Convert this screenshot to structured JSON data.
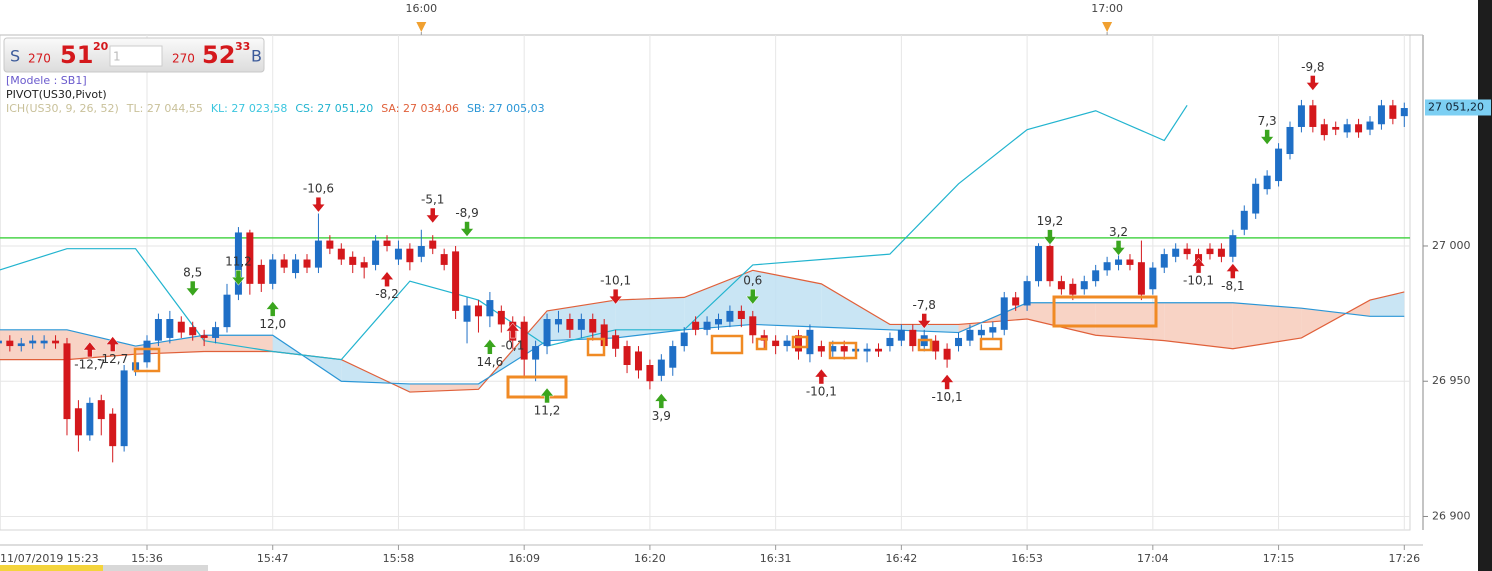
{
  "header": {
    "quote": {
      "sell_side": "S",
      "sell_prefix": "270",
      "sell_figure": "51",
      "sell_pips": "20",
      "input": "1",
      "buy_prefix": "270",
      "buy_figure": "52",
      "buy_pips": "33",
      "buy_side": "B"
    },
    "model": "[Modele : SB1]",
    "pivot_label": "PIVOT(US30,Pivot)",
    "legend": [
      {
        "text": "ICH(US30, 9, 26, 52)",
        "color": "#c9c19a"
      },
      {
        "text": "TL: 27 044,55",
        "color": "#c9c19a"
      },
      {
        "text": "KL: 27 023,58",
        "color": "#3cc6df"
      },
      {
        "text": "CS: 27 051,20",
        "color": "#22b4cf"
      },
      {
        "text": "SA: 27 034,06",
        "color": "#e0603a"
      },
      {
        "text": "SB: 27 005,03",
        "color": "#2a96d6"
      }
    ]
  },
  "chart_data": {
    "type": "candlestick",
    "x": [
      "15:23",
      "15:24",
      "15:25",
      "15:26",
      "15:27",
      "15:28",
      "15:29",
      "15:30",
      "15:31",
      "15:32",
      "15:33",
      "15:34",
      "15:35",
      "15:36",
      "15:37",
      "15:38",
      "15:39",
      "15:40",
      "15:41",
      "15:42",
      "15:43",
      "15:44",
      "15:45",
      "15:46",
      "15:47",
      "15:48",
      "15:49",
      "15:50",
      "15:51",
      "15:52",
      "15:53",
      "15:54",
      "15:55",
      "15:56",
      "15:57",
      "15:58",
      "15:59",
      "16:00",
      "16:01",
      "16:02",
      "16:03",
      "16:04",
      "16:05",
      "16:06",
      "16:07",
      "16:08",
      "16:09",
      "16:10",
      "16:11",
      "16:12",
      "16:13",
      "16:14",
      "16:15",
      "16:16",
      "16:17",
      "16:18",
      "16:19",
      "16:20",
      "16:21",
      "16:22",
      "16:23",
      "16:24",
      "16:25",
      "16:26",
      "16:27",
      "16:28",
      "16:29",
      "16:30",
      "16:31",
      "16:32",
      "16:33",
      "16:34",
      "16:35",
      "16:36",
      "16:37",
      "16:38",
      "16:39",
      "16:40",
      "16:41",
      "16:42",
      "16:43",
      "16:44",
      "16:45",
      "16:46",
      "16:47",
      "16:48",
      "16:49",
      "16:50",
      "16:51",
      "16:52",
      "16:53",
      "16:54",
      "16:55",
      "16:56",
      "16:57",
      "16:58",
      "16:59",
      "17:00",
      "17:01",
      "17:02",
      "17:03",
      "17:04",
      "17:05",
      "17:06",
      "17:07",
      "17:08",
      "17:09",
      "17:10",
      "17:11",
      "17:12",
      "17:13",
      "17:14",
      "17:15",
      "17:16",
      "17:17",
      "17:18",
      "17:19",
      "17:20",
      "17:21",
      "17:22",
      "17:23",
      "17:24",
      "17:25",
      "17:26"
    ],
    "open": [
      26964,
      26965,
      26963,
      26964,
      26964,
      26965,
      26964,
      26940,
      26930,
      26943,
      26938,
      26926,
      26954,
      26957,
      26965,
      26966,
      26972,
      26970,
      26967,
      26966,
      26970,
      26982,
      27005,
      26993,
      26986,
      26995,
      26990,
      26995,
      26992,
      27002,
      26999,
      26996,
      26994,
      26993,
      27002,
      26995,
      26999,
      26996,
      27002,
      26997,
      26998,
      26972,
      26978,
      26974,
      26976,
      26972,
      26972,
      26958,
      26963,
      26971,
      26973,
      26969,
      26973,
      26971,
      26967,
      26963,
      26961,
      26956,
      26952,
      26955,
      26963,
      26972,
      26969,
      26971,
      26972,
      26976,
      26974,
      26967,
      26965,
      26963,
      26967,
      26960,
      26963,
      26961,
      26963,
      26961,
      26961,
      26962,
      26963,
      26965,
      26969,
      26963,
      26965,
      26962,
      26963,
      26965,
      26967,
      26968,
      26969,
      26981,
      26978,
      26987,
      27000,
      26987,
      26986,
      26984,
      26987,
      26991,
      26993,
      26995,
      26994,
      26984,
      26992,
      26996,
      26999,
      26997,
      26999,
      26999,
      26996,
      27006,
      27012,
      27021,
      27024,
      27034,
      27044,
      27052,
      27045,
      27044,
      27042,
      27045,
      27043,
      27045,
      27052,
      27048
    ],
    "high": [
      26967,
      26967,
      26966,
      26967,
      26967,
      26967,
      26966,
      26943,
      26944,
      26945,
      26940,
      26956,
      26960,
      26967,
      26975,
      26976,
      26974,
      26972,
      26969,
      26972,
      26986,
      27007,
      27006,
      26995,
      26997,
      26997,
      26997,
      26997,
      27012,
      27004,
      27001,
      26998,
      26996,
      27004,
      27004,
      27002,
      27001,
      27006,
      27004,
      26999,
      27000,
      26981,
      26980,
      26983,
      26978,
      26974,
      26974,
      26965,
      26975,
      26976,
      26975,
      26975,
      26975,
      26973,
      26969,
      26965,
      26963,
      26958,
      26960,
      26965,
      26970,
      26974,
      26974,
      26975,
      26978,
      26978,
      26976,
      26969,
      26967,
      26967,
      26969,
      26971,
      26965,
      26965,
      26965,
      26964,
      26964,
      26964,
      26968,
      26971,
      26971,
      26969,
      26967,
      26964,
      26968,
      26971,
      26971,
      26972,
      26983,
      26983,
      26989,
      27001,
      27001,
      26989,
      26988,
      26989,
      26993,
      26996,
      26997,
      26997,
      27002,
      26994,
      26999,
      27001,
      27001,
      26999,
      27001,
      27001,
      27006,
      27015,
      27025,
      27028,
      27038,
      27046,
      27054,
      27054,
      27047,
      27046,
      27047,
      27047,
      27048,
      27054,
      27054,
      27053
    ],
    "low": [
      26962,
      26961,
      26961,
      26962,
      26962,
      26962,
      26930,
      26924,
      26928,
      26930,
      26920,
      26924,
      26952,
      26955,
      26963,
      26964,
      26966,
      26965,
      26963,
      26964,
      26968,
      26980,
      26982,
      26983,
      26984,
      26990,
      26988,
      26990,
      26990,
      26997,
      26993,
      26990,
      26988,
      26991,
      26998,
      26993,
      26991,
      26994,
      26997,
      26991,
      26973,
      26964,
      26968,
      26970,
      26968,
      26962,
      26952,
      26950,
      26960,
      26968,
      26966,
      26966,
      26965,
      26960,
      26959,
      26953,
      26951,
      26947,
      26950,
      26952,
      26961,
      26967,
      26967,
      26969,
      26970,
      26970,
      26964,
      26962,
      26960,
      26961,
      26958,
      26957,
      26959,
      26959,
      26958,
      26959,
      26957,
      26959,
      26961,
      26963,
      26961,
      26961,
      26958,
      26955,
      26961,
      26963,
      26965,
      26966,
      26967,
      26976,
      26976,
      26985,
      26985,
      26982,
      26980,
      26982,
      26985,
      26989,
      26991,
      26991,
      26980,
      26982,
      26990,
      26994,
      26995,
      26992,
      26995,
      26994,
      26994,
      27004,
      27010,
      27019,
      27022,
      27032,
      27042,
      27042,
      27039,
      27041,
      27040,
      27040,
      27041,
      27043,
      27045,
      27044
    ],
    "close": [
      26965,
      26963,
      26964,
      26965,
      26965,
      26964,
      26936,
      26930,
      26942,
      26936,
      26926,
      26954,
      26957,
      26965,
      26973,
      26973,
      26968,
      26967,
      26966,
      26970,
      26982,
      27005,
      26986,
      26986,
      26995,
      26992,
      26995,
      26992,
      27002,
      26999,
      26995,
      26993,
      26992,
      27002,
      27000,
      26999,
      26994,
      27000,
      26999,
      26993,
      26976,
      26978,
      26974,
      26980,
      26971,
      26965,
      26958,
      26963,
      26973,
      26973,
      26969,
      26973,
      26968,
      26963,
      26962,
      26956,
      26954,
      26950,
      26958,
      26963,
      26968,
      26969,
      26972,
      26973,
      26976,
      26973,
      26967,
      26965,
      26963,
      26965,
      26961,
      26969,
      26961,
      26963,
      26961,
      26962,
      26962,
      26961,
      26966,
      26969,
      26963,
      26967,
      26961,
      26958,
      26966,
      26969,
      26969,
      26970,
      26981,
      26978,
      26987,
      27000,
      26987,
      26984,
      26982,
      26987,
      26991,
      26994,
      26995,
      26993,
      26982,
      26992,
      26997,
      26999,
      26997,
      26994,
      26997,
      26996,
      27004,
      27013,
      27023,
      27026,
      27036,
      27044,
      27052,
      27044,
      27041,
      27043,
      27045,
      27042,
      27046,
      27052,
      27047,
      27051
    ],
    "up_color": "#1f6fc6",
    "down_color": "#d4181c",
    "series": [
      {
        "color": "#e0603a",
        "x": [
          "15:23",
          "15:29",
          "15:35",
          "15:41",
          "15:47",
          "15:53",
          "15:59",
          "16:05",
          "16:11",
          "16:17",
          "16:23",
          "16:29",
          "16:35",
          "16:41",
          "16:47",
          "16:53",
          "16:59",
          "17:05",
          "17:11",
          "17:17",
          "17:23",
          "17:26"
        ],
        "values": [
          26958,
          26958,
          26960,
          26961,
          26961,
          26958,
          26946,
          26947,
          26976,
          26980,
          26981,
          26991,
          26986,
          26971,
          26971,
          26973,
          26967,
          26965,
          26962,
          26966,
          26980,
          26983
        ]
      },
      {
        "color": "#2a96d6",
        "x": [
          "15:23",
          "15:29",
          "15:35",
          "15:41",
          "15:47",
          "15:53",
          "15:59",
          "16:05",
          "16:11",
          "16:17",
          "16:23",
          "16:29",
          "16:35",
          "16:41",
          "16:47",
          "16:53",
          "16:59",
          "17:05",
          "17:11",
          "17:17",
          "17:23",
          "17:26"
        ],
        "values": [
          26969,
          26969,
          26963,
          26967,
          26967,
          26950,
          26949,
          26949,
          26965,
          26966,
          26969,
          26971,
          26970,
          26969,
          26968,
          26979,
          26979,
          26979,
          26979,
          26977,
          26974,
          26974
        ]
      },
      {
        "color": "#22b4cf",
        "x": [
          "15:23",
          "15:29",
          "15:35",
          "15:41",
          "15:47",
          "15:53",
          "15:59",
          "16:05",
          "16:11",
          "16:17",
          "16:23",
          "16:29",
          "16:35",
          "16:41",
          "16:47",
          "16:53",
          "16:59",
          "17:05",
          "17:07"
        ],
        "values": [
          26991,
          26999,
          26999,
          26965,
          26961,
          26958,
          26987,
          26980,
          26963,
          26969,
          26969,
          26993,
          26995,
          26997,
          27023,
          27043,
          27050,
          27039,
          27052
        ]
      }
    ],
    "cloud_up_color": "#bfe0f2",
    "cloud_down_color": "#f7cbbb",
    "pivot": 27003,
    "pivot_color": "#4cd44c",
    "ylim": [
      26895,
      27078
    ],
    "yticks": [
      {
        "value": 26900,
        "label": "26 900"
      },
      {
        "value": 26950,
        "label": "26 950"
      },
      {
        "value": 27000,
        "label": "27 000"
      }
    ],
    "xticks": [
      "15:36",
      "15:47",
      "15:58",
      "16:09",
      "16:20",
      "16:31",
      "16:42",
      "16:53",
      "17:04",
      "17:15",
      "17:26"
    ],
    "x_start_label": "11/07/2019 15:23",
    "top_ticks": [
      "16:00",
      "17:00"
    ],
    "last_price": {
      "value": 27051.2,
      "label": "27 051,20"
    },
    "grid": true,
    "annotations": [
      {
        "text": "-12,7",
        "time": "15:31",
        "price": 26956,
        "arrow": "up",
        "color": "#d4181c"
      },
      {
        "text": "-12,7",
        "time": "15:33",
        "price": 26958,
        "arrow": "up",
        "color": "#d4181c"
      },
      {
        "text": "8,5",
        "time": "15:40",
        "price": 26990,
        "arrow": "down",
        "color": "#3aa51e"
      },
      {
        "text": "11,2",
        "time": "15:44",
        "price": 26994,
        "arrow": "down",
        "color": "#3aa51e"
      },
      {
        "text": "12,0",
        "time": "15:47",
        "price": 26971,
        "arrow": "up",
        "color": "#3aa51e"
      },
      {
        "text": "-10,6",
        "time": "15:51",
        "price": 27021,
        "arrow": "down",
        "color": "#d4181c"
      },
      {
        "text": "-8,2",
        "time": "15:57",
        "price": 26982,
        "arrow": "up",
        "color": "#d4181c"
      },
      {
        "text": "-5,1",
        "time": "16:01",
        "price": 27017,
        "arrow": "down",
        "color": "#d4181c"
      },
      {
        "text": "-8,9",
        "time": "16:04",
        "price": 27012,
        "arrow": "down",
        "color": "#3aa51e"
      },
      {
        "text": "14,6",
        "time": "16:06",
        "price": 26957,
        "arrow": "up",
        "color": "#3aa51e"
      },
      {
        "text": "-0,1",
        "time": "16:08",
        "price": 26963,
        "arrow": "up",
        "color": "#d4181c"
      },
      {
        "text": "11,2",
        "time": "16:11",
        "price": 26939,
        "arrow": "up",
        "color": "#3aa51e"
      },
      {
        "text": "-10,1",
        "time": "16:17",
        "price": 26987,
        "arrow": "down",
        "color": "#d4181c"
      },
      {
        "text": "3,9",
        "time": "16:21",
        "price": 26937,
        "arrow": "up",
        "color": "#3aa51e"
      },
      {
        "text": "0,6",
        "time": "16:29",
        "price": 26987,
        "arrow": "down",
        "color": "#3aa51e"
      },
      {
        "text": "-10,1",
        "time": "16:35",
        "price": 26946,
        "arrow": "up",
        "color": "#d4181c"
      },
      {
        "text": "-7,8",
        "time": "16:44",
        "price": 26978,
        "arrow": "down",
        "color": "#d4181c"
      },
      {
        "text": "-10,1",
        "time": "16:46",
        "price": 26944,
        "arrow": "up",
        "color": "#d4181c"
      },
      {
        "text": "19,2",
        "time": "16:55",
        "price": 27009,
        "arrow": "down",
        "color": "#3aa51e"
      },
      {
        "text": "3,2",
        "time": "17:01",
        "price": 27005,
        "arrow": "down",
        "color": "#3aa51e"
      },
      {
        "text": "-10,1",
        "time": "17:08",
        "price": 26987,
        "arrow": "up",
        "color": "#d4181c"
      },
      {
        "text": "-8,1",
        "time": "17:11",
        "price": 26985,
        "arrow": "up",
        "color": "#d4181c"
      },
      {
        "text": "7,3",
        "time": "17:14",
        "price": 27046,
        "arrow": "down",
        "color": "#3aa51e"
      },
      {
        "text": "-9,8",
        "time": "17:18",
        "price": 27066,
        "arrow": "down",
        "color": "#d4181c"
      }
    ]
  }
}
